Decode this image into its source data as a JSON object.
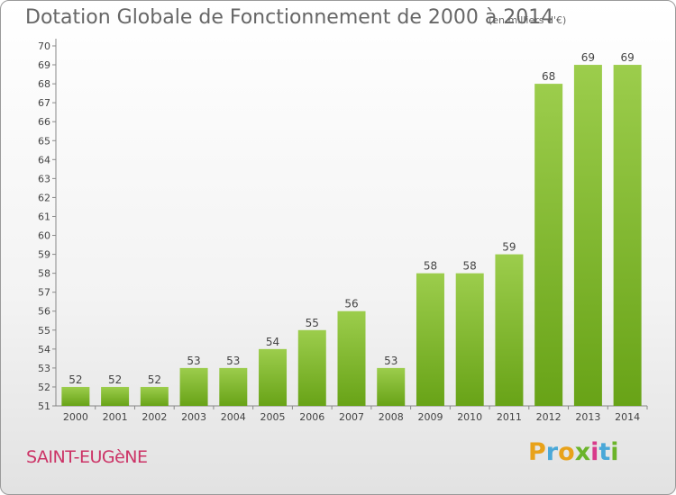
{
  "header": {
    "title": "Dotation Globale de Fonctionnement de 2000 à 2014",
    "subtitle": "(en milliers d'€)"
  },
  "commune": "SAINT-EUGèNE",
  "logo": {
    "letters": [
      "P",
      "r",
      "o",
      "x",
      "i",
      "t",
      "i"
    ],
    "colors": [
      "#e8a21a",
      "#4aa8d8",
      "#e8a21a",
      "#6bb42a",
      "#d83a8a",
      "#4aa8d8",
      "#6bb42a"
    ]
  },
  "chart_data": {
    "type": "bar",
    "title": "Dotation Globale de Fonctionnement de 2000 à 2014",
    "subtitle": "(en milliers d'€)",
    "categories": [
      "2000",
      "2001",
      "2002",
      "2003",
      "2004",
      "2005",
      "2006",
      "2007",
      "2008",
      "2009",
      "2010",
      "2011",
      "2012",
      "2013",
      "2014"
    ],
    "values": [
      52,
      52,
      52,
      53,
      53,
      54,
      55,
      56,
      53,
      58,
      58,
      59,
      68,
      69,
      69
    ],
    "ylim": [
      51,
      70
    ],
    "yticks": [
      51,
      52,
      53,
      54,
      55,
      56,
      57,
      58,
      59,
      60,
      61,
      62,
      63,
      64,
      65,
      66,
      67,
      68,
      69,
      70
    ],
    "grid": false,
    "colors": {
      "bar_light": "#9ccd4c",
      "bar_dark": "#68a317",
      "axis": "#888888"
    }
  }
}
